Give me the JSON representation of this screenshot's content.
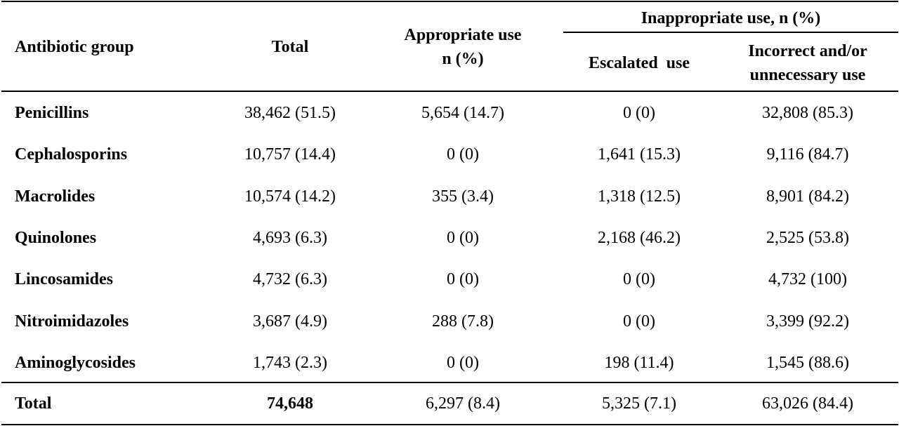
{
  "header": {
    "group_label": "Antibiotic group",
    "total_label": "Total",
    "appropriate_line1": "Appropriate use",
    "appropriate_line2": "n (%)",
    "inappropriate_label": "Inappropriate use, n (%)",
    "escalated_label": "Escalated  use",
    "incorrect_line1": "Incorrect and/or",
    "incorrect_line2": "unnecessary use"
  },
  "rows": [
    {
      "group": "Penicillins",
      "total": "38,462 (51.5)",
      "appropriate": "5,654 (14.7)",
      "escalated": "0 (0)",
      "incorrect": "32,808 (85.3)"
    },
    {
      "group": "Cephalosporins",
      "total": "10,757 (14.4)",
      "appropriate": "0 (0)",
      "escalated": "1,641 (15.3)",
      "incorrect": "9,116 (84.7)"
    },
    {
      "group": "Macrolides",
      "total": "10,574 (14.2)",
      "appropriate": "355 (3.4)",
      "escalated": "1,318 (12.5)",
      "incorrect": "8,901 (84.2)"
    },
    {
      "group": "Quinolones",
      "total": "4,693 (6.3)",
      "appropriate": "0 (0)",
      "escalated": "2,168 (46.2)",
      "incorrect": "2,525 (53.8)"
    },
    {
      "group": "Lincosamides",
      "total": "4,732 (6.3)",
      "appropriate": "0 (0)",
      "escalated": "0 (0)",
      "incorrect": "4,732 (100)"
    },
    {
      "group": "Nitroimidazoles",
      "total": "3,687 (4.9)",
      "appropriate": "288 (7.8)",
      "escalated": "0 (0)",
      "incorrect": "3,399 (92.2)"
    },
    {
      "group": "Aminoglycosides",
      "total": "1,743 (2.3)",
      "appropriate": "0 (0)",
      "escalated": "198 (11.4)",
      "incorrect": "1,545 (88.6)"
    }
  ],
  "total_row": {
    "group": "Total",
    "total": "74,648",
    "appropriate": "6,297 (8.4)",
    "escalated": "5,325 (7.1)",
    "incorrect": "63,026 (84.4)"
  }
}
